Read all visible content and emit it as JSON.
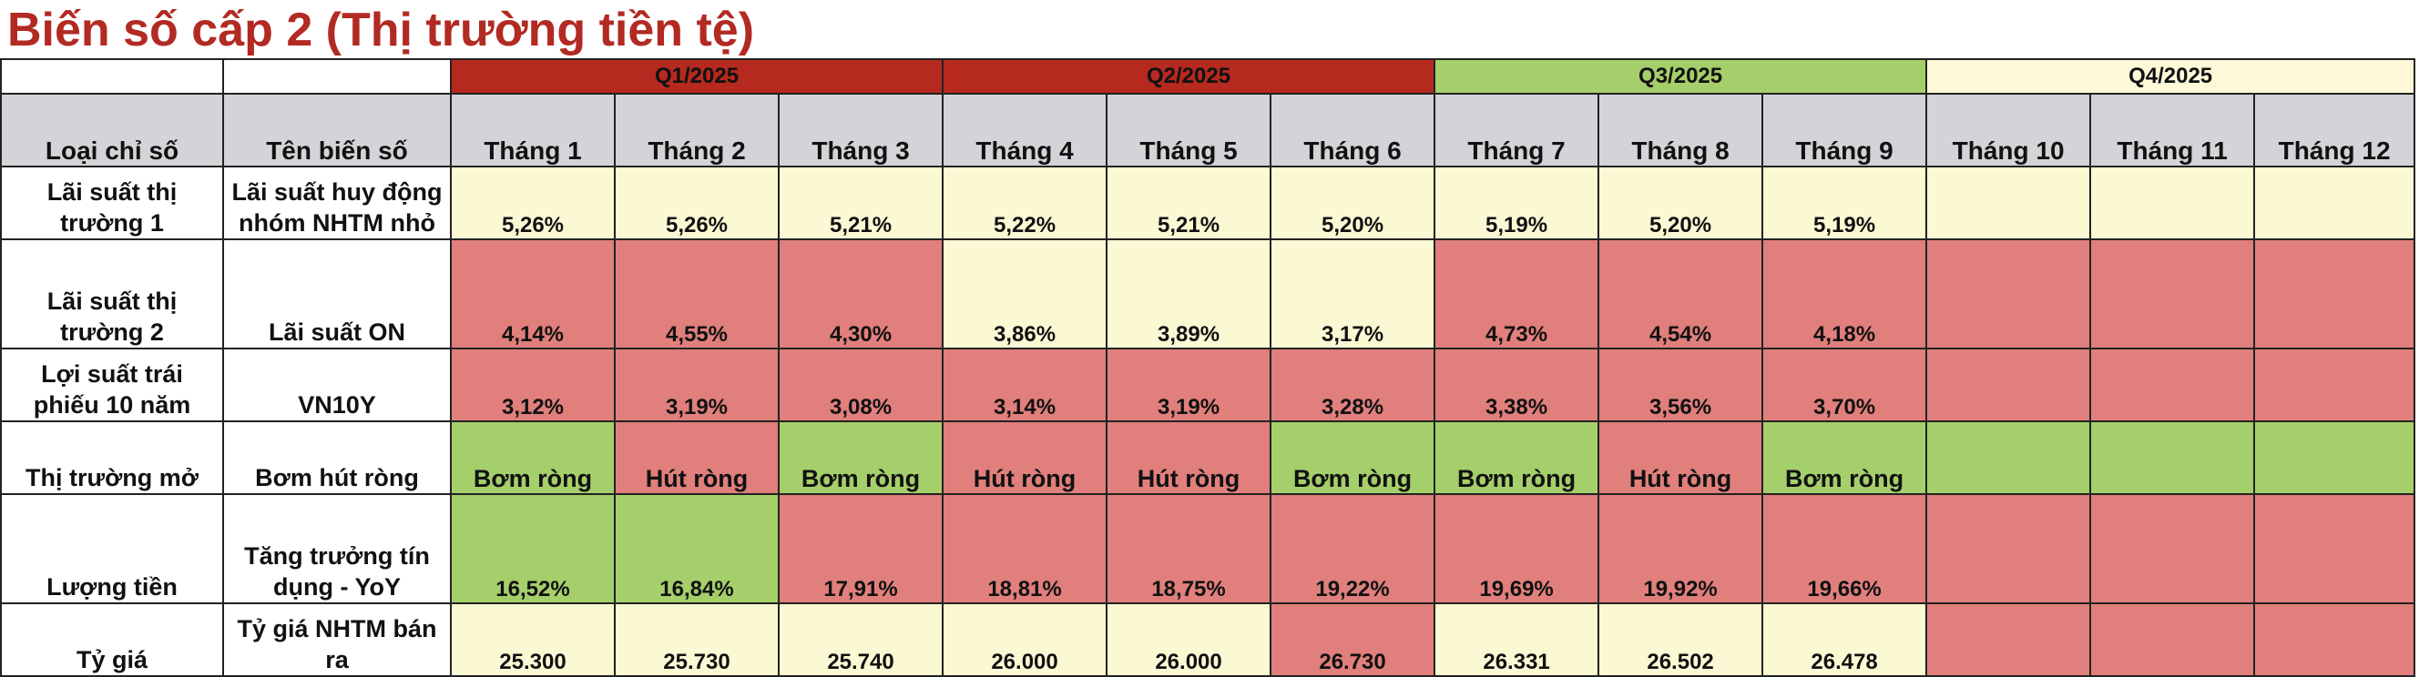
{
  "title": "Biến số cấp 2  (Thị trường tiền tệ)",
  "quarters": [
    "Q1/2025",
    "Q2/2025",
    "Q3/2025",
    "Q4/2025"
  ],
  "header": {
    "col_type": "Loại chỉ số",
    "col_name": "Tên biến số",
    "months": [
      "Tháng 1",
      "Tháng 2",
      "Tháng 3",
      "Tháng 4",
      "Tháng 5",
      "Tháng 6",
      "Tháng 7",
      "Tháng 8",
      "Tháng 9",
      "Tháng 10",
      "Tháng 11",
      "Tháng 12"
    ]
  },
  "colors": {
    "title": "#b22a22",
    "quarter_red": "#b5291f",
    "quarter_green": "#a5cf6a",
    "quarter_cream": "#fdf9d8",
    "cell_cream": "#fbf9d4",
    "cell_red": "#e07f7c",
    "cell_green": "#a5cf6a",
    "header_gray": "#d4d4d8"
  },
  "rows": [
    {
      "type_lines": [
        "Lãi suất thị",
        "trường 1"
      ],
      "name_lines": [
        "Lãi suất huy động",
        "nhóm NHTM nhỏ"
      ],
      "values": [
        "5,26%",
        "5,26%",
        "5,21%",
        "5,22%",
        "5,21%",
        "5,20%",
        "5,19%",
        "5,20%",
        "5,19%",
        "",
        "",
        ""
      ],
      "status": [
        "cream",
        "cream",
        "cream",
        "cream",
        "cream",
        "cream",
        "cream",
        "cream",
        "cream",
        "cream",
        "cream",
        "cream"
      ]
    },
    {
      "type_lines": [
        "Lãi suất thị",
        "trường 2"
      ],
      "name_lines": [
        "Lãi suất ON"
      ],
      "values": [
        "4,14%",
        "4,55%",
        "4,30%",
        "3,86%",
        "3,89%",
        "3,17%",
        "4,73%",
        "4,54%",
        "4,18%",
        "",
        "",
        ""
      ],
      "status": [
        "red",
        "red",
        "red",
        "cream",
        "cream",
        "cream",
        "red",
        "red",
        "red",
        "red",
        "red",
        "red"
      ]
    },
    {
      "type_lines": [
        "Lợi suất trái",
        "phiếu 10 năm"
      ],
      "name_lines": [
        "VN10Y"
      ],
      "values": [
        "3,12%",
        "3,19%",
        "3,08%",
        "3,14%",
        "3,19%",
        "3,28%",
        "3,38%",
        "3,56%",
        "3,70%",
        "",
        "",
        ""
      ],
      "status": [
        "red",
        "red",
        "red",
        "red",
        "red",
        "red",
        "red",
        "red",
        "red",
        "red",
        "red",
        "red"
      ]
    },
    {
      "type_lines": [
        "Thị trường mở"
      ],
      "name_lines": [
        "Bơm hút ròng"
      ],
      "values": [
        "Bơm ròng",
        "Hút ròng",
        "Bơm ròng",
        "Hút ròng",
        "Hút ròng",
        "Bơm ròng",
        "Bơm ròng",
        "Hút ròng",
        "Bơm ròng",
        "",
        "",
        ""
      ],
      "status": [
        "green",
        "red",
        "green",
        "red",
        "red",
        "green",
        "green",
        "red",
        "green",
        "green",
        "green",
        "green"
      ]
    },
    {
      "type_lines": [
        "Lượng tiền"
      ],
      "name_lines": [
        "Tăng trưởng tín",
        "dụng - YoY"
      ],
      "values": [
        "16,52%",
        "16,84%",
        "17,91%",
        "18,81%",
        "18,75%",
        "19,22%",
        "19,69%",
        "19,92%",
        "19,66%",
        "",
        "",
        ""
      ],
      "status": [
        "green",
        "green",
        "red",
        "red",
        "red",
        "red",
        "red",
        "red",
        "red",
        "red",
        "red",
        "red"
      ]
    },
    {
      "type_lines": [
        "Tỷ giá"
      ],
      "name_lines": [
        "Tỷ giá NHTM bán",
        "ra"
      ],
      "values": [
        "25.300",
        "25.730",
        "25.740",
        "26.000",
        "26.000",
        "26.730",
        "26.331",
        "26.502",
        "26.478",
        "",
        "",
        ""
      ],
      "status": [
        "cream",
        "cream",
        "cream",
        "cream",
        "cream",
        "red",
        "cream",
        "cream",
        "cream",
        "red",
        "red",
        "red"
      ]
    }
  ]
}
